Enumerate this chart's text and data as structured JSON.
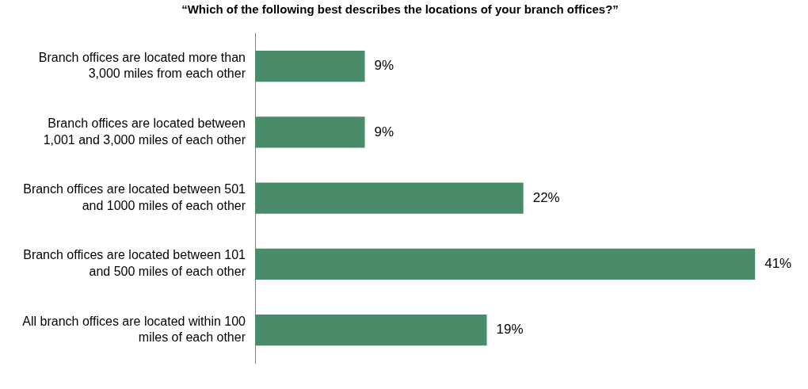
{
  "chart_data": {
    "type": "bar",
    "orientation": "horizontal",
    "title": "“Which of the following best describes the locations of your branch offices?”",
    "categories": [
      "Branch offices are located more than 3,000 miles from each other",
      "Branch offices are located between 1,001 and 3,000 miles of each other",
      "Branch offices are located between 501 and 1000 miles of each other",
      "Branch offices are located between 101 and 500 miles of each other",
      "All branch offices are located within 100 miles of each other"
    ],
    "values": [
      9,
      9,
      22,
      41,
      19
    ],
    "value_labels": [
      "9%",
      "9%",
      "22%",
      "41%",
      "19%"
    ],
    "color": "#4a8c69",
    "tick_labels": "y",
    "legend": false
  }
}
